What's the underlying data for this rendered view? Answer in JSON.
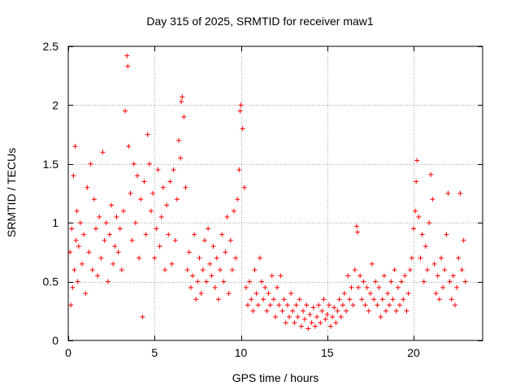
{
  "chart_data": {
    "type": "scatter",
    "title": "Day 315 of 2025, SRMTID for receiver maw1",
    "xlabel": "GPS time / hours",
    "ylabel": "SRMTID / TECUs",
    "xlim": [
      0,
      24
    ],
    "ylim": [
      0,
      2.5
    ],
    "xticks": [
      0,
      5,
      10,
      15,
      20
    ],
    "xtick_labels": [
      "0",
      "5",
      "10",
      "15",
      "20"
    ],
    "yticks": [
      0,
      0.5,
      1,
      1.5,
      2,
      2.5
    ],
    "ytick_labels": [
      "0",
      "0.5",
      "1",
      "1.5",
      "2",
      "2.5"
    ],
    "grid": true,
    "marker": "+",
    "color": "#ff0000",
    "series": [
      {
        "name": "SRMTID",
        "points": [
          [
            0.1,
            0.75
          ],
          [
            0.15,
            0.3
          ],
          [
            0.2,
            0.95
          ],
          [
            0.25,
            0.45
          ],
          [
            0.3,
            1.4
          ],
          [
            0.35,
            0.6
          ],
          [
            0.4,
            1.65
          ],
          [
            0.45,
            0.85
          ],
          [
            0.5,
            1.1
          ],
          [
            0.55,
            0.5
          ],
          [
            0.6,
            0.8
          ],
          [
            0.7,
            1.0
          ],
          [
            0.8,
            0.65
          ],
          [
            0.9,
            0.9
          ],
          [
            1.0,
            0.4
          ],
          [
            1.1,
            1.3
          ],
          [
            1.2,
            0.75
          ],
          [
            1.3,
            1.5
          ],
          [
            1.4,
            0.6
          ],
          [
            1.5,
            1.2
          ],
          [
            1.6,
            0.95
          ],
          [
            1.7,
            0.55
          ],
          [
            1.8,
            1.05
          ],
          [
            1.9,
            0.7
          ],
          [
            2.0,
            1.6
          ],
          [
            2.1,
            0.85
          ],
          [
            2.2,
            1.0
          ],
          [
            2.3,
            0.5
          ],
          [
            2.4,
            0.9
          ],
          [
            2.5,
            1.15
          ],
          [
            2.6,
            0.65
          ],
          [
            2.7,
            0.8
          ],
          [
            2.8,
            1.05
          ],
          [
            2.9,
            0.75
          ],
          [
            3.0,
            0.95
          ],
          [
            3.1,
            0.6
          ],
          [
            3.2,
            1.1
          ],
          [
            3.3,
            1.95
          ],
          [
            3.4,
            2.42
          ],
          [
            3.45,
            2.33
          ],
          [
            3.5,
            1.65
          ],
          [
            3.6,
            1.25
          ],
          [
            3.7,
            0.85
          ],
          [
            3.8,
            1.5
          ],
          [
            3.9,
            1.0
          ],
          [
            4.0,
            1.4
          ],
          [
            4.1,
            0.7
          ],
          [
            4.2,
            1.2
          ],
          [
            4.3,
            0.2
          ],
          [
            4.4,
            1.35
          ],
          [
            4.5,
            0.9
          ],
          [
            4.6,
            1.75
          ],
          [
            4.7,
            1.5
          ],
          [
            4.8,
            1.1
          ],
          [
            4.9,
            1.25
          ],
          [
            5.0,
            0.7
          ],
          [
            5.1,
            0.95
          ],
          [
            5.2,
            1.45
          ],
          [
            5.3,
            0.8
          ],
          [
            5.4,
            1.05
          ],
          [
            5.5,
            1.3
          ],
          [
            5.6,
            0.6
          ],
          [
            5.7,
            1.15
          ],
          [
            5.8,
            0.9
          ],
          [
            5.9,
            1.35
          ],
          [
            6.0,
            0.65
          ],
          [
            6.1,
            1.45
          ],
          [
            6.2,
            0.85
          ],
          [
            6.3,
            1.2
          ],
          [
            6.4,
            1.7
          ],
          [
            6.5,
            1.55
          ],
          [
            6.55,
            2.03
          ],
          [
            6.6,
            2.07
          ],
          [
            6.7,
            1.9
          ],
          [
            6.8,
            1.3
          ],
          [
            6.9,
            0.6
          ],
          [
            7.0,
            0.75
          ],
          [
            7.1,
            0.45
          ],
          [
            7.2,
            0.55
          ],
          [
            7.3,
            0.9
          ],
          [
            7.4,
            0.35
          ],
          [
            7.5,
            0.5
          ],
          [
            7.6,
            0.7
          ],
          [
            7.7,
            0.4
          ],
          [
            7.8,
            0.6
          ],
          [
            7.9,
            0.85
          ],
          [
            8.0,
            0.5
          ],
          [
            8.1,
            0.95
          ],
          [
            8.2,
            0.65
          ],
          [
            8.3,
            0.55
          ],
          [
            8.4,
            0.8
          ],
          [
            8.5,
            0.45
          ],
          [
            8.6,
            0.7
          ],
          [
            8.7,
            0.35
          ],
          [
            8.8,
            0.6
          ],
          [
            8.9,
            0.9
          ],
          [
            9.0,
            0.5
          ],
          [
            9.1,
            0.75
          ],
          [
            9.2,
            1.05
          ],
          [
            9.3,
            0.4
          ],
          [
            9.4,
            0.85
          ],
          [
            9.5,
            0.6
          ],
          [
            9.6,
            1.1
          ],
          [
            9.7,
            0.7
          ],
          [
            9.8,
            1.2
          ],
          [
            9.9,
            1.45
          ],
          [
            9.95,
            1.95
          ],
          [
            10.0,
            2.0
          ],
          [
            10.1,
            1.8
          ],
          [
            10.2,
            1.3
          ],
          [
            10.3,
            0.45
          ],
          [
            10.4,
            0.3
          ],
          [
            10.5,
            0.5
          ],
          [
            10.6,
            0.35
          ],
          [
            10.7,
            0.25
          ],
          [
            10.8,
            0.6
          ],
          [
            10.9,
            0.4
          ],
          [
            11.0,
            0.3
          ],
          [
            11.1,
            0.7
          ],
          [
            11.2,
            0.5
          ],
          [
            11.3,
            0.35
          ],
          [
            11.4,
            0.45
          ],
          [
            11.5,
            0.25
          ],
          [
            11.6,
            0.4
          ],
          [
            11.7,
            0.3
          ],
          [
            11.8,
            0.55
          ],
          [
            11.9,
            0.35
          ],
          [
            12.0,
            0.2
          ],
          [
            12.1,
            0.45
          ],
          [
            12.2,
            0.3
          ],
          [
            12.3,
            0.55
          ],
          [
            12.4,
            0.25
          ],
          [
            12.5,
            0.35
          ],
          [
            12.6,
            0.15
          ],
          [
            12.7,
            0.3
          ],
          [
            12.8,
            0.2
          ],
          [
            12.9,
            0.4
          ],
          [
            13.0,
            0.25
          ],
          [
            13.1,
            0.15
          ],
          [
            13.2,
            0.3
          ],
          [
            13.3,
            0.2
          ],
          [
            13.4,
            0.35
          ],
          [
            13.5,
            0.12
          ],
          [
            13.6,
            0.25
          ],
          [
            13.7,
            0.18
          ],
          [
            13.8,
            0.3
          ],
          [
            13.9,
            0.1
          ],
          [
            14.0,
            0.22
          ],
          [
            14.1,
            0.15
          ],
          [
            14.2,
            0.28
          ],
          [
            14.3,
            0.12
          ],
          [
            14.4,
            0.2
          ],
          [
            14.5,
            0.3
          ],
          [
            14.6,
            0.15
          ],
          [
            14.7,
            0.25
          ],
          [
            14.8,
            0.35
          ],
          [
            14.9,
            0.18
          ],
          [
            15.0,
            0.22
          ],
          [
            15.1,
            0.3
          ],
          [
            15.2,
            0.12
          ],
          [
            15.3,
            0.2
          ],
          [
            15.4,
            0.28
          ],
          [
            15.5,
            0.15
          ],
          [
            15.6,
            0.25
          ],
          [
            15.7,
            0.35
          ],
          [
            15.8,
            0.2
          ],
          [
            15.9,
            0.3
          ],
          [
            16.0,
            0.4
          ],
          [
            16.1,
            0.25
          ],
          [
            16.2,
            0.55
          ],
          [
            16.3,
            0.35
          ],
          [
            16.4,
            0.45
          ],
          [
            16.5,
            0.3
          ],
          [
            16.6,
            0.6
          ],
          [
            16.7,
            0.97
          ],
          [
            16.75,
            0.92
          ],
          [
            16.8,
            0.45
          ],
          [
            16.9,
            0.55
          ],
          [
            17.0,
            0.35
          ],
          [
            17.1,
            0.5
          ],
          [
            17.2,
            0.3
          ],
          [
            17.3,
            0.45
          ],
          [
            17.4,
            0.25
          ],
          [
            17.5,
            0.4
          ],
          [
            17.6,
            0.65
          ],
          [
            17.7,
            0.35
          ],
          [
            17.8,
            0.5
          ],
          [
            17.9,
            0.3
          ],
          [
            18.0,
            0.45
          ],
          [
            18.1,
            0.2
          ],
          [
            18.2,
            0.35
          ],
          [
            18.3,
            0.55
          ],
          [
            18.4,
            0.25
          ],
          [
            18.5,
            0.4
          ],
          [
            18.6,
            0.3
          ],
          [
            18.7,
            0.5
          ],
          [
            18.8,
            0.35
          ],
          [
            18.9,
            0.6
          ],
          [
            19.0,
            0.25
          ],
          [
            19.1,
            0.45
          ],
          [
            19.2,
            0.3
          ],
          [
            19.3,
            0.5
          ],
          [
            19.4,
            0.35
          ],
          [
            19.5,
            0.55
          ],
          [
            19.6,
            0.25
          ],
          [
            19.7,
            0.4
          ],
          [
            19.8,
            0.6
          ],
          [
            19.9,
            0.7
          ],
          [
            20.0,
            0.95
          ],
          [
            20.1,
            1.1
          ],
          [
            20.15,
            1.35
          ],
          [
            20.2,
            1.53
          ],
          [
            20.3,
            1.05
          ],
          [
            20.4,
            0.7
          ],
          [
            20.5,
            0.9
          ],
          [
            20.6,
            0.5
          ],
          [
            20.7,
            0.8
          ],
          [
            20.8,
            0.6
          ],
          [
            20.9,
            1.0
          ],
          [
            21.0,
            1.41
          ],
          [
            21.1,
            1.2
          ],
          [
            21.2,
            0.65
          ],
          [
            21.3,
            0.4
          ],
          [
            21.4,
            0.55
          ],
          [
            21.5,
            0.35
          ],
          [
            21.6,
            0.7
          ],
          [
            21.7,
            0.45
          ],
          [
            21.8,
            0.6
          ],
          [
            21.9,
            0.9
          ],
          [
            22.0,
            1.25
          ],
          [
            22.1,
            0.5
          ],
          [
            22.2,
            0.35
          ],
          [
            22.3,
            0.55
          ],
          [
            22.4,
            0.3
          ],
          [
            22.5,
            0.45
          ],
          [
            22.6,
            0.7
          ],
          [
            22.7,
            1.25
          ],
          [
            22.8,
            0.6
          ],
          [
            22.9,
            0.85
          ],
          [
            23.0,
            0.5
          ]
        ]
      }
    ]
  }
}
